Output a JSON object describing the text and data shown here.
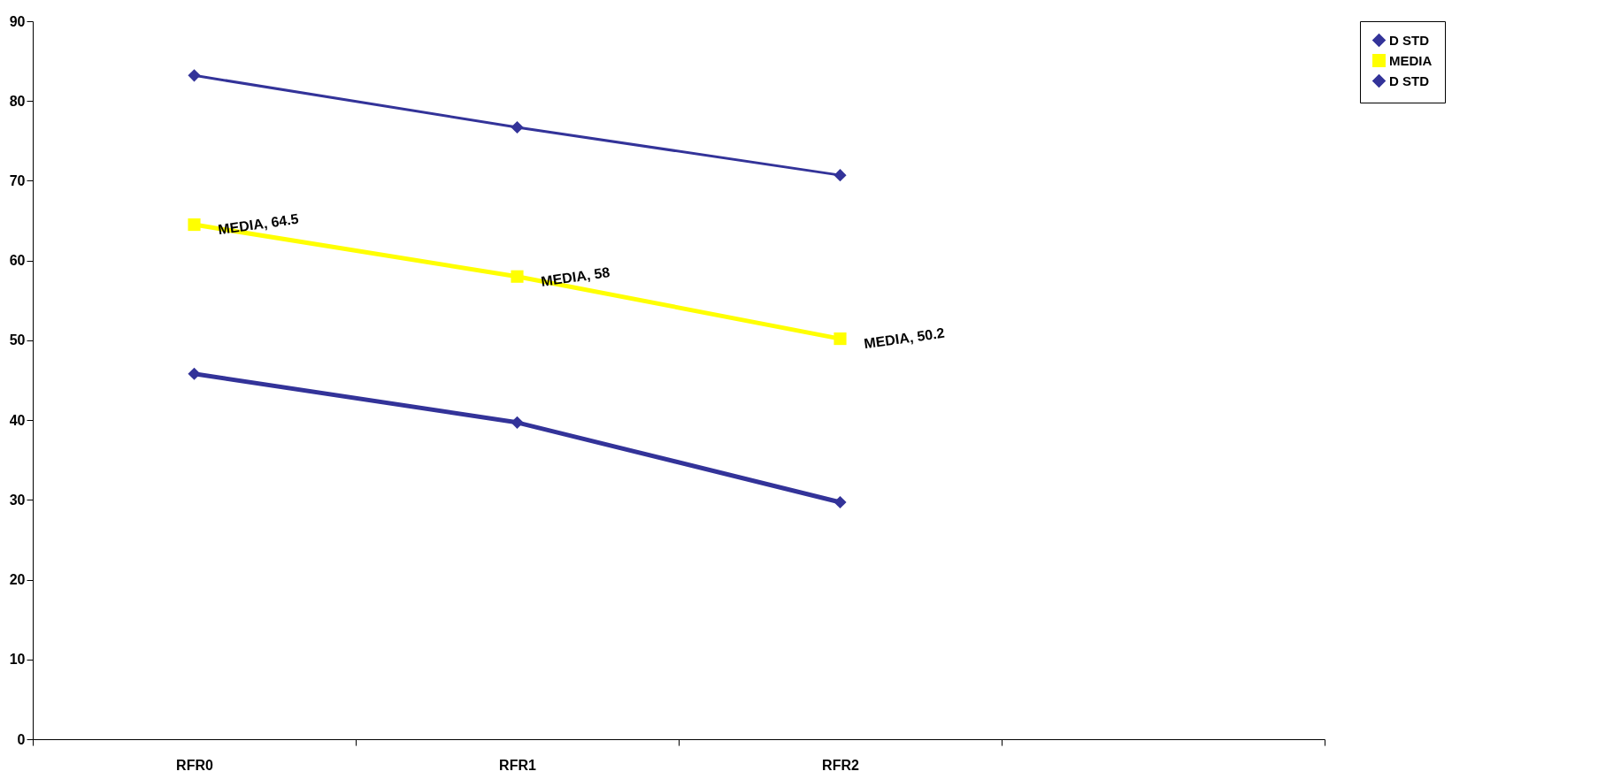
{
  "chart_data": {
    "type": "line",
    "categories": [
      "RFR0",
      "RFR1",
      "RFR2",
      null
    ],
    "series": [
      {
        "name": "D STD",
        "color": "#333399",
        "marker": "diamond",
        "values": [
          83.2,
          76.7,
          70.7,
          null
        ]
      },
      {
        "name": "MEDIA",
        "color": "#ffff00",
        "marker": "square",
        "values": [
          64.5,
          58,
          50.2,
          null
        ],
        "value_labels": [
          "MEDIA, 64.5",
          "MEDIA, 58",
          "MEDIA, 50.2",
          null
        ]
      },
      {
        "name": "D STD",
        "color": "#333399",
        "marker": "diamond",
        "values": [
          45.8,
          39.7,
          29.7,
          null
        ]
      }
    ],
    "ylim": [
      0,
      90
    ],
    "yticks": [
      0,
      10,
      20,
      30,
      40,
      50,
      60,
      70,
      80,
      90
    ],
    "grid": false,
    "legend": "right",
    "line_style": "solid"
  }
}
